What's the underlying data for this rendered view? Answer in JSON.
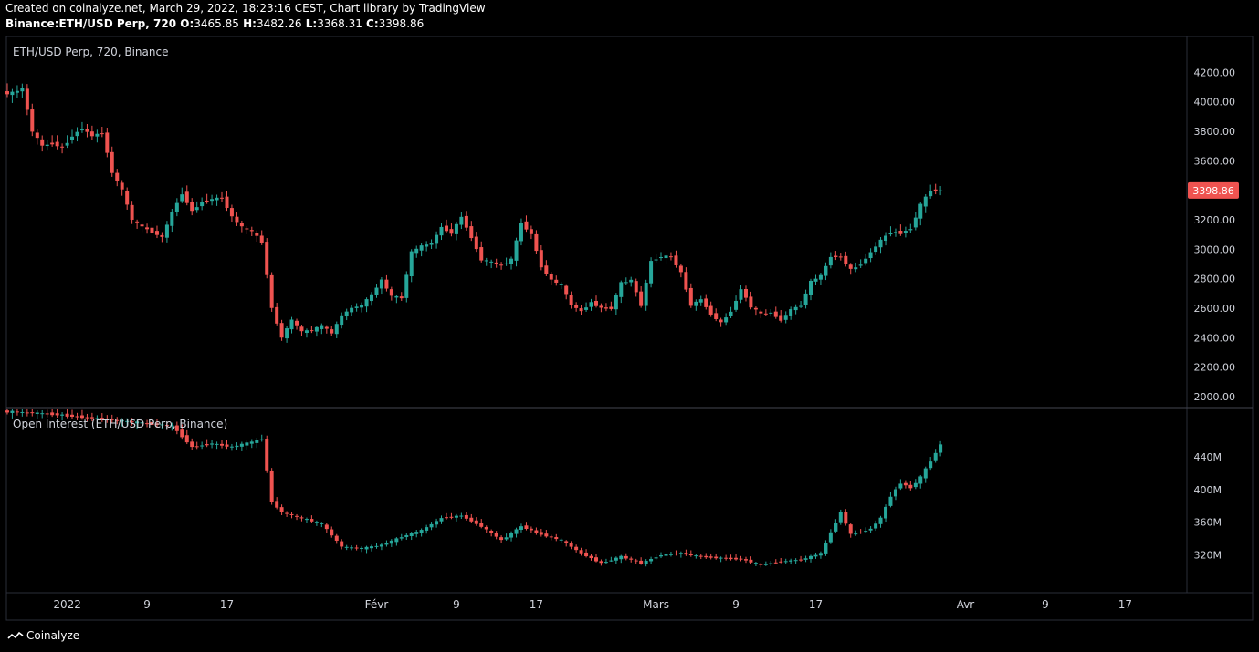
{
  "header": {
    "created_line": "Created on coinalyze.net, March 29, 2022, 18:23:16 CEST, Chart library by TradingView",
    "symbol": "Binance:ETH/USD Perp, 720",
    "ohlc": [
      {
        "k": "O",
        "v": "3465.85"
      },
      {
        "k": "H",
        "v": "3482.26"
      },
      {
        "k": "L",
        "v": "3368.31"
      },
      {
        "k": "C",
        "v": "3398.86"
      }
    ]
  },
  "footer": {
    "brand": "Coinalyze"
  },
  "colors": {
    "up": "#26a69a",
    "down": "#ef5350",
    "grid": "#2a2e39",
    "background": "#000000",
    "text": "#d1d4dc"
  },
  "chart_data": [
    {
      "type": "candlestick",
      "title": "ETH/USD Perp, 720, Binance",
      "ylim": [
        1950,
        4320
      ],
      "y_ticks": [
        "4200.00",
        "4000.00",
        "3800.00",
        "3600.00",
        "3400.00",
        "3200.00",
        "3000.00",
        "2800.00",
        "2600.00",
        "2400.00",
        "2200.00",
        "2000.00"
      ],
      "last_price_label": "3398.86",
      "x_start": "2021-12-26",
      "x_end": "2022-04-23",
      "x_ticks": [
        {
          "date": "2022-01-01",
          "label": "2022"
        },
        {
          "date": "2022-01-09",
          "label": "9"
        },
        {
          "date": "2022-01-17",
          "label": "17"
        },
        {
          "date": "2022-02-01",
          "label": "Févr"
        },
        {
          "date": "2022-02-09",
          "label": "9"
        },
        {
          "date": "2022-02-17",
          "label": "17"
        },
        {
          "date": "2022-03-01",
          "label": "Mars"
        },
        {
          "date": "2022-03-09",
          "label": "9"
        },
        {
          "date": "2022-03-17",
          "label": "17"
        },
        {
          "date": "2022-04-01",
          "label": "Avr"
        },
        {
          "date": "2022-04-09",
          "label": "9"
        },
        {
          "date": "2022-04-17",
          "label": "17"
        }
      ],
      "closes": [
        {
          "date": "2021-12-26",
          "c": 4060
        },
        {
          "date": "2021-12-27",
          "c": 4090
        },
        {
          "date": "2021-12-28",
          "c": 3800
        },
        {
          "date": "2021-12-29",
          "c": 3700
        },
        {
          "date": "2021-12-30",
          "c": 3720
        },
        {
          "date": "2021-12-31",
          "c": 3690
        },
        {
          "date": "2022-01-01",
          "c": 3770
        },
        {
          "date": "2022-01-02",
          "c": 3820
        },
        {
          "date": "2022-01-03",
          "c": 3770
        },
        {
          "date": "2022-01-04",
          "c": 3790
        },
        {
          "date": "2022-01-05",
          "c": 3520
        },
        {
          "date": "2022-01-06",
          "c": 3400
        },
        {
          "date": "2022-01-07",
          "c": 3200
        },
        {
          "date": "2022-01-08",
          "c": 3150
        },
        {
          "date": "2022-01-09",
          "c": 3120
        },
        {
          "date": "2022-01-10",
          "c": 3080
        },
        {
          "date": "2022-01-11",
          "c": 3250
        },
        {
          "date": "2022-01-12",
          "c": 3380
        },
        {
          "date": "2022-01-13",
          "c": 3260
        },
        {
          "date": "2022-01-14",
          "c": 3320
        },
        {
          "date": "2022-01-15",
          "c": 3340
        },
        {
          "date": "2022-01-16",
          "c": 3350
        },
        {
          "date": "2022-01-17",
          "c": 3220
        },
        {
          "date": "2022-01-18",
          "c": 3150
        },
        {
          "date": "2022-01-19",
          "c": 3120
        },
        {
          "date": "2022-01-20",
          "c": 3050
        },
        {
          "date": "2022-01-21",
          "c": 2600
        },
        {
          "date": "2022-01-22",
          "c": 2400
        },
        {
          "date": "2022-01-23",
          "c": 2520
        },
        {
          "date": "2022-01-24",
          "c": 2440
        },
        {
          "date": "2022-01-25",
          "c": 2450
        },
        {
          "date": "2022-01-26",
          "c": 2480
        },
        {
          "date": "2022-01-27",
          "c": 2430
        },
        {
          "date": "2022-01-28",
          "c": 2550
        },
        {
          "date": "2022-01-29",
          "c": 2600
        },
        {
          "date": "2022-01-30",
          "c": 2620
        },
        {
          "date": "2022-01-31",
          "c": 2690
        },
        {
          "date": "2022-02-01",
          "c": 2790
        },
        {
          "date": "2022-02-02",
          "c": 2680
        },
        {
          "date": "2022-02-03",
          "c": 2670
        },
        {
          "date": "2022-02-04",
          "c": 2980
        },
        {
          "date": "2022-02-05",
          "c": 3020
        },
        {
          "date": "2022-02-06",
          "c": 3040
        },
        {
          "date": "2022-02-07",
          "c": 3150
        },
        {
          "date": "2022-02-08",
          "c": 3110
        },
        {
          "date": "2022-02-09",
          "c": 3220
        },
        {
          "date": "2022-02-10",
          "c": 3080
        },
        {
          "date": "2022-02-11",
          "c": 2930
        },
        {
          "date": "2022-02-12",
          "c": 2910
        },
        {
          "date": "2022-02-13",
          "c": 2890
        },
        {
          "date": "2022-02-14",
          "c": 2930
        },
        {
          "date": "2022-02-15",
          "c": 3180
        },
        {
          "date": "2022-02-16",
          "c": 3100
        },
        {
          "date": "2022-02-17",
          "c": 2880
        },
        {
          "date": "2022-02-18",
          "c": 2790
        },
        {
          "date": "2022-02-19",
          "c": 2760
        },
        {
          "date": "2022-02-20",
          "c": 2620
        },
        {
          "date": "2022-02-21",
          "c": 2580
        },
        {
          "date": "2022-02-22",
          "c": 2640
        },
        {
          "date": "2022-02-23",
          "c": 2600
        },
        {
          "date": "2022-02-24",
          "c": 2600
        },
        {
          "date": "2022-02-25",
          "c": 2770
        },
        {
          "date": "2022-02-26",
          "c": 2790
        },
        {
          "date": "2022-02-27",
          "c": 2620
        },
        {
          "date": "2022-02-28",
          "c": 2920
        },
        {
          "date": "2022-03-01",
          "c": 2950
        },
        {
          "date": "2022-03-02",
          "c": 2950
        },
        {
          "date": "2022-03-03",
          "c": 2840
        },
        {
          "date": "2022-03-04",
          "c": 2620
        },
        {
          "date": "2022-03-05",
          "c": 2660
        },
        {
          "date": "2022-03-06",
          "c": 2560
        },
        {
          "date": "2022-03-07",
          "c": 2500
        },
        {
          "date": "2022-03-08",
          "c": 2580
        },
        {
          "date": "2022-03-09",
          "c": 2730
        },
        {
          "date": "2022-03-10",
          "c": 2610
        },
        {
          "date": "2022-03-11",
          "c": 2560
        },
        {
          "date": "2022-03-12",
          "c": 2570
        },
        {
          "date": "2022-03-13",
          "c": 2520
        },
        {
          "date": "2022-03-14",
          "c": 2590
        },
        {
          "date": "2022-03-15",
          "c": 2620
        },
        {
          "date": "2022-03-16",
          "c": 2780
        },
        {
          "date": "2022-03-17",
          "c": 2820
        },
        {
          "date": "2022-03-18",
          "c": 2950
        },
        {
          "date": "2022-03-19",
          "c": 2950
        },
        {
          "date": "2022-03-20",
          "c": 2860
        },
        {
          "date": "2022-03-21",
          "c": 2900
        },
        {
          "date": "2022-03-22",
          "c": 2980
        },
        {
          "date": "2022-03-23",
          "c": 3060
        },
        {
          "date": "2022-03-24",
          "c": 3120
        },
        {
          "date": "2022-03-25",
          "c": 3110
        },
        {
          "date": "2022-03-26",
          "c": 3140
        },
        {
          "date": "2022-03-27",
          "c": 3300
        },
        {
          "date": "2022-03-28",
          "c": 3400
        },
        {
          "date": "2022-03-29",
          "c": 3399
        }
      ]
    },
    {
      "type": "candlestick",
      "title": "Open Interest (ETH/USD Perp, Binance)",
      "ylim": [
        285000000,
        480000000
      ],
      "y_ticks": [
        {
          "v": 440000000,
          "label": "440M"
        },
        {
          "v": 400000000,
          "label": "400M"
        },
        {
          "v": 360000000,
          "label": "360M"
        },
        {
          "v": 320000000,
          "label": "320M"
        }
      ],
      "closes": [
        {
          "date": "2021-12-26",
          "c": 495000000
        },
        {
          "date": "2021-12-30",
          "c": 492000000
        },
        {
          "date": "2022-01-05",
          "c": 485000000
        },
        {
          "date": "2022-01-09",
          "c": 480000000
        },
        {
          "date": "2022-01-11",
          "c": 478000000
        },
        {
          "date": "2022-01-13",
          "c": 452000000
        },
        {
          "date": "2022-01-15",
          "c": 456000000
        },
        {
          "date": "2022-01-17",
          "c": 452000000
        },
        {
          "date": "2022-01-19",
          "c": 458000000
        },
        {
          "date": "2022-01-20",
          "c": 462000000
        },
        {
          "date": "2022-01-21",
          "c": 385000000
        },
        {
          "date": "2022-01-22",
          "c": 372000000
        },
        {
          "date": "2022-01-24",
          "c": 365000000
        },
        {
          "date": "2022-01-26",
          "c": 358000000
        },
        {
          "date": "2022-01-28",
          "c": 330000000
        },
        {
          "date": "2022-01-30",
          "c": 328000000
        },
        {
          "date": "2022-02-01",
          "c": 332000000
        },
        {
          "date": "2022-02-03",
          "c": 342000000
        },
        {
          "date": "2022-02-05",
          "c": 350000000
        },
        {
          "date": "2022-02-07",
          "c": 365000000
        },
        {
          "date": "2022-02-09",
          "c": 368000000
        },
        {
          "date": "2022-02-11",
          "c": 355000000
        },
        {
          "date": "2022-02-13",
          "c": 338000000
        },
        {
          "date": "2022-02-15",
          "c": 355000000
        },
        {
          "date": "2022-02-17",
          "c": 345000000
        },
        {
          "date": "2022-02-19",
          "c": 338000000
        },
        {
          "date": "2022-02-21",
          "c": 322000000
        },
        {
          "date": "2022-02-23",
          "c": 310000000
        },
        {
          "date": "2022-02-25",
          "c": 318000000
        },
        {
          "date": "2022-02-27",
          "c": 310000000
        },
        {
          "date": "2022-03-01",
          "c": 320000000
        },
        {
          "date": "2022-03-03",
          "c": 322000000
        },
        {
          "date": "2022-03-05",
          "c": 318000000
        },
        {
          "date": "2022-03-07",
          "c": 316000000
        },
        {
          "date": "2022-03-09",
          "c": 315000000
        },
        {
          "date": "2022-03-11",
          "c": 308000000
        },
        {
          "date": "2022-03-13",
          "c": 312000000
        },
        {
          "date": "2022-03-15",
          "c": 314000000
        },
        {
          "date": "2022-03-17",
          "c": 322000000
        },
        {
          "date": "2022-03-18",
          "c": 348000000
        },
        {
          "date": "2022-03-19",
          "c": 372000000
        },
        {
          "date": "2022-03-20",
          "c": 345000000
        },
        {
          "date": "2022-03-21",
          "c": 348000000
        },
        {
          "date": "2022-03-22",
          "c": 352000000
        },
        {
          "date": "2022-03-23",
          "c": 365000000
        },
        {
          "date": "2022-03-24",
          "c": 392000000
        },
        {
          "date": "2022-03-25",
          "c": 408000000
        },
        {
          "date": "2022-03-26",
          "c": 402000000
        },
        {
          "date": "2022-03-27",
          "c": 415000000
        },
        {
          "date": "2022-03-28",
          "c": 435000000
        },
        {
          "date": "2022-03-29",
          "c": 455000000
        }
      ]
    }
  ]
}
